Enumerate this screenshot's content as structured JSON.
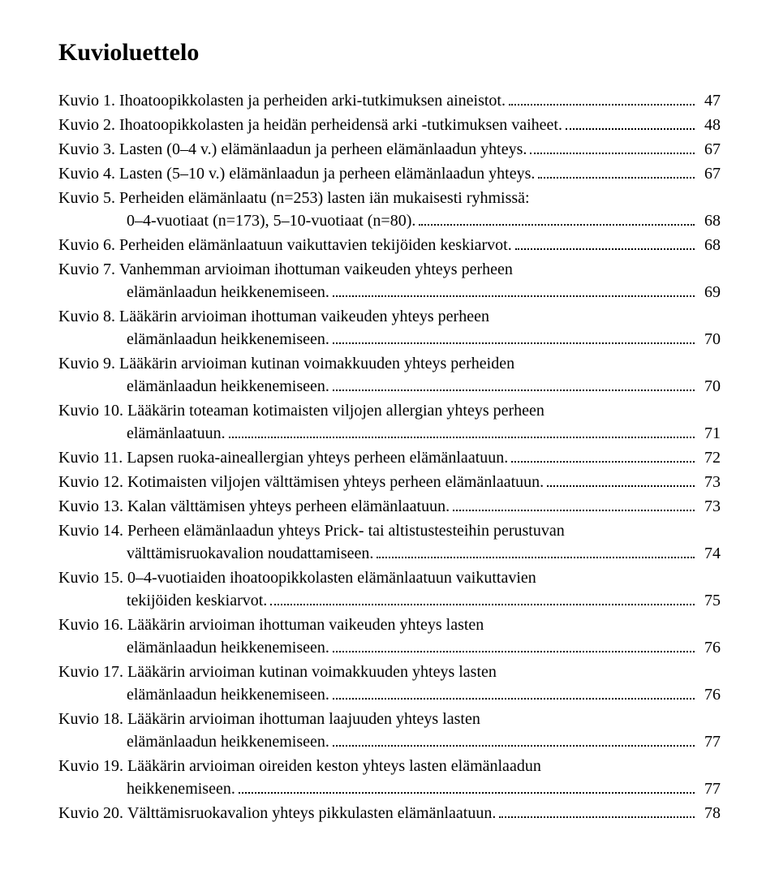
{
  "title": "Kuvioluettelo",
  "font": {
    "family": "Times New Roman",
    "title_size_pt": 22,
    "body_size_pt": 15,
    "color": "#000000"
  },
  "background_color": "#ffffff",
  "entries": [
    {
      "label": "Kuvio 1.",
      "text": "Ihoatoopikkolasten ja perheiden arki-tutkimuksen aineistot.",
      "page": "47"
    },
    {
      "label": "Kuvio 2.",
      "text": "Ihoatoopikkolasten ja heidän perheidensä arki -tutkimuksen vaiheet.",
      "page": "48"
    },
    {
      "label": "Kuvio 3.",
      "text": "Lasten (0–4 v.) elämänlaadun ja perheen elämänlaadun yhteys.",
      "page": "67"
    },
    {
      "label": "Kuvio 4.",
      "text": "Lasten (5–10 v.) elämänlaadun ja perheen elämänlaadun yhteys.",
      "page": "67"
    },
    {
      "label": "Kuvio 5.",
      "text": "Perheiden elämänlaatu (n=253) lasten iän mukaisesti ryhmissä:",
      "cont": "0–4-vuotiaat (n=173), 5–10-vuotiaat (n=80).",
      "page": "68"
    },
    {
      "label": "Kuvio 6.",
      "text": "Perheiden elämänlaatuun vaikuttavien tekijöiden keskiarvot.",
      "page": "68"
    },
    {
      "label": "Kuvio 7.",
      "text": "Vanhemman arvioiman ihottuman vaikeuden yhteys perheen",
      "cont": "elämänlaadun heikkenemiseen.",
      "page": "69"
    },
    {
      "label": "Kuvio 8.",
      "text": "Lääkärin arvioiman ihottuman vaikeuden yhteys perheen",
      "cont": "elämänlaadun heikkenemiseen.",
      "page": "70"
    },
    {
      "label": "Kuvio 9.",
      "text": "Lääkärin arvioiman kutinan voimakkuuden yhteys perheiden",
      "cont": "elämänlaadun heikkenemiseen.",
      "page": "70"
    },
    {
      "label": "Kuvio 10.",
      "text": "Lääkärin toteaman kotimaisten viljojen allergian yhteys perheen",
      "cont": "elämänlaatuun.",
      "page": "71"
    },
    {
      "label": "Kuvio 11.",
      "text": "Lapsen ruoka-aineallergian yhteys perheen elämänlaatuun.",
      "page": "72"
    },
    {
      "label": "Kuvio 12.",
      "text": "Kotimaisten viljojen välttämisen yhteys perheen elämänlaatuun.",
      "page": "73"
    },
    {
      "label": "Kuvio 13.",
      "text": "Kalan välttämisen yhteys perheen elämänlaatuun.",
      "page": "73"
    },
    {
      "label": "Kuvio 14.",
      "text": "Perheen elämänlaadun yhteys Prick- tai altistustesteihin perustuvan",
      "cont": "välttämisruokavalion noudattamiseen.",
      "page": "74"
    },
    {
      "label": "Kuvio 15.",
      "text": "0–4-vuotiaiden ihoatoopikkolasten elämänlaatuun vaikuttavien",
      "cont": "tekijöiden keskiarvot.",
      "page": "75"
    },
    {
      "label": "Kuvio 16.",
      "text": "Lääkärin arvioiman ihottuman vaikeuden yhteys lasten",
      "cont": "elämänlaadun heikkenemiseen.",
      "page": "76"
    },
    {
      "label": "Kuvio 17.",
      "text": "Lääkärin arvioiman kutinan voimakkuuden yhteys lasten",
      "cont": "elämänlaadun heikkenemiseen.",
      "page": "76"
    },
    {
      "label": "Kuvio 18.",
      "text": "Lääkärin arvioiman ihottuman laajuuden yhteys lasten",
      "cont": "elämänlaadun heikkenemiseen.",
      "page": "77"
    },
    {
      "label": "Kuvio 19.",
      "text": "Lääkärin arvioiman oireiden keston yhteys lasten elämänlaadun",
      "cont": "heikkenemiseen.",
      "page": "77"
    },
    {
      "label": "Kuvio 20.",
      "text": "Välttämisruokavalion yhteys pikkulasten elämänlaatuun.",
      "page": "78"
    }
  ]
}
